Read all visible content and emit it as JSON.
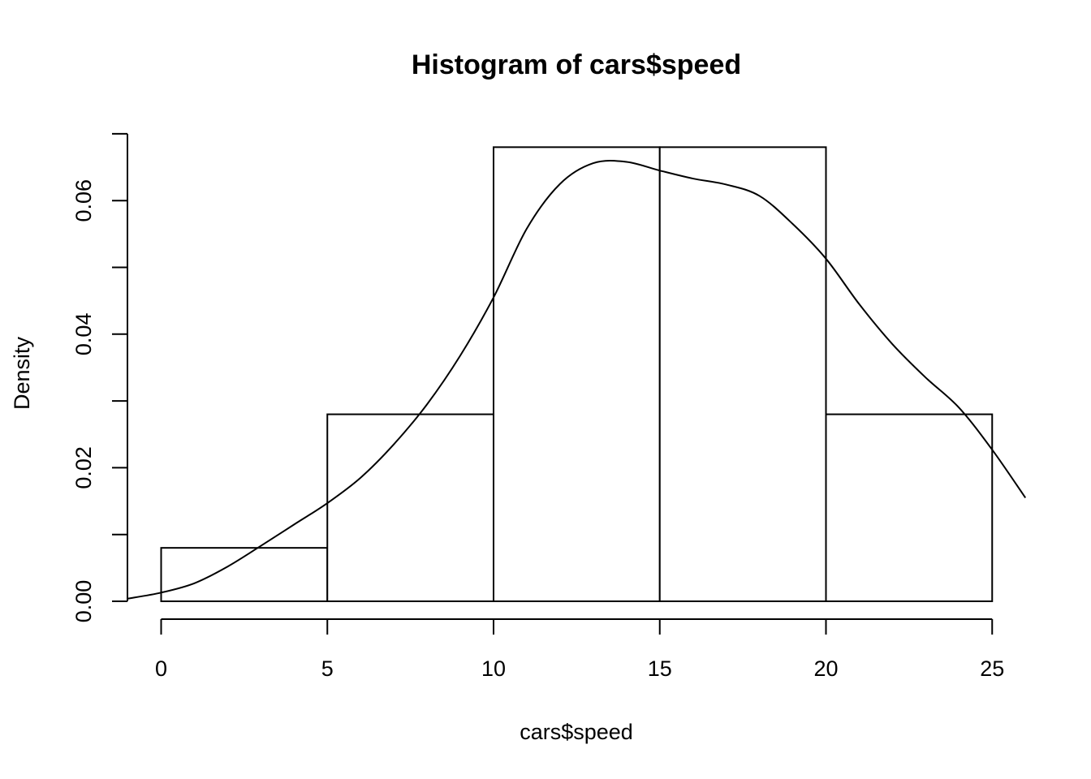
{
  "chart_data": {
    "type": "bar",
    "title": "Histogram of cars$speed",
    "xlabel": "cars$speed",
    "ylabel": "Density",
    "bins": [
      {
        "start": 0,
        "end": 5,
        "density": 0.008
      },
      {
        "start": 5,
        "end": 10,
        "density": 0.028
      },
      {
        "start": 10,
        "end": 15,
        "density": 0.068
      },
      {
        "start": 15,
        "end": 20,
        "density": 0.068
      },
      {
        "start": 20,
        "end": 25,
        "density": 0.028
      }
    ],
    "x_ticks": [
      "0",
      "5",
      "10",
      "15",
      "20",
      "25"
    ],
    "y_ticks": [
      "0.00",
      "0.02",
      "0.04",
      "0.06"
    ],
    "xlim": [
      -1,
      26
    ],
    "ylim": [
      0,
      0.07
    ],
    "grid": false,
    "density_curve": {
      "x": [
        -1,
        0,
        1,
        2,
        3,
        4,
        5,
        6,
        7,
        8,
        9,
        10,
        11,
        12,
        13,
        14,
        15,
        16,
        17,
        18,
        19,
        20,
        21,
        22,
        23,
        24,
        25,
        26
      ],
      "y": [
        0.0004,
        0.0013,
        0.0027,
        0.0052,
        0.0083,
        0.0115,
        0.0147,
        0.0185,
        0.0235,
        0.0295,
        0.0368,
        0.0455,
        0.0558,
        0.0625,
        0.0656,
        0.0658,
        0.0645,
        0.0633,
        0.0624,
        0.0607,
        0.0565,
        0.0513,
        0.0445,
        0.0385,
        0.0335,
        0.029,
        0.0227,
        0.0155
      ]
    }
  }
}
